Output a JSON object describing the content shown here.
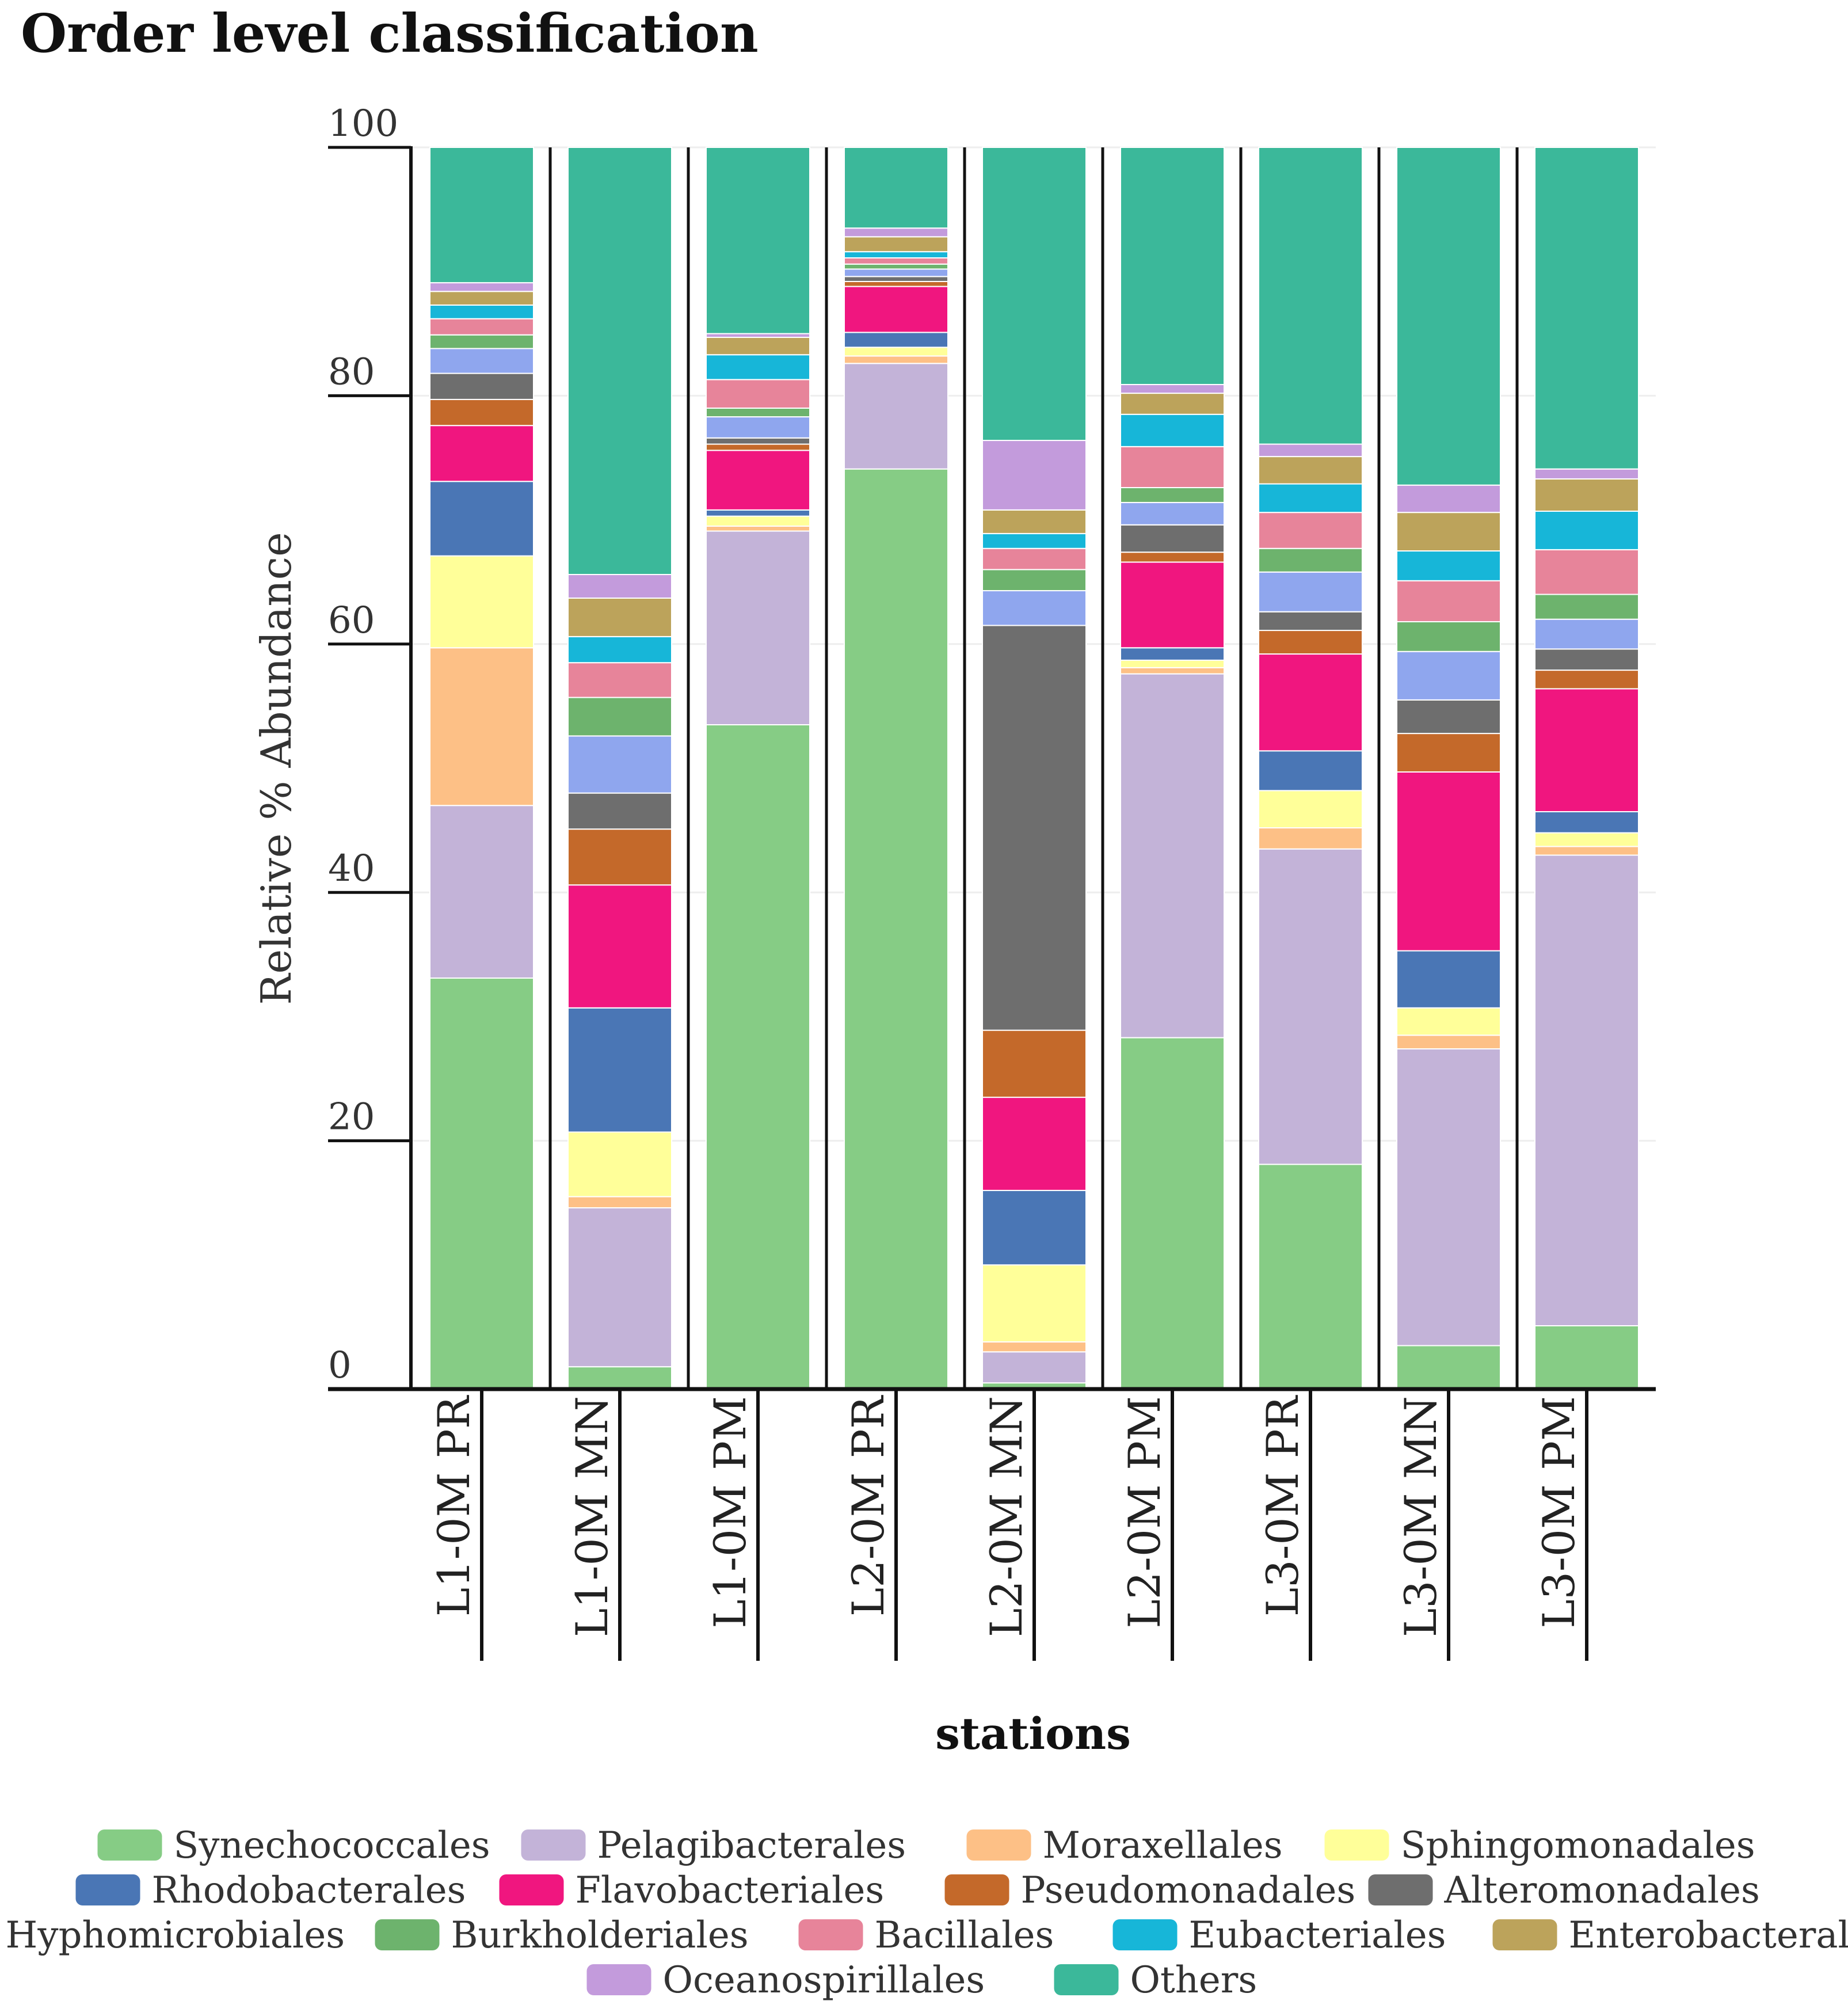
{
  "chart_data": {
    "type": "bar",
    "stacked": true,
    "title": "Order level classification",
    "xlabel": "stations",
    "ylabel": "Relative % Abundance",
    "ylim": [
      0,
      100
    ],
    "yticks": [
      0,
      20,
      40,
      60,
      80,
      100
    ],
    "grid": true,
    "legend_position": "bottom",
    "categories": [
      "L1-0M PR",
      "L1-0M MN",
      "L1-0M PM",
      "L2-0M PR",
      "L2-0M MN",
      "L2-0M PM",
      "L3-0M PR",
      "L3-0M MN",
      "L3-0M PM"
    ],
    "series": [
      {
        "name": "Synechococcales",
        "color": "#86CC85",
        "values": [
          33.1,
          1.8,
          53.5,
          74.1,
          0.5,
          28.3,
          18.1,
          3.5,
          5.1
        ]
      },
      {
        "name": "Pelagibacterales",
        "color": "#C3B3D8",
        "values": [
          13.9,
          12.8,
          15.6,
          8.5,
          2.5,
          29.3,
          25.4,
          23.9,
          37.9
        ]
      },
      {
        "name": "Moraxellales",
        "color": "#FDC086",
        "values": [
          12.7,
          0.9,
          0.4,
          0.6,
          0.8,
          0.5,
          1.7,
          1.1,
          0.7
        ]
      },
      {
        "name": "Sphingomonadales",
        "color": "#FFFF99",
        "values": [
          7.4,
          5.2,
          0.8,
          0.7,
          6.2,
          0.6,
          3.0,
          2.2,
          1.1
        ]
      },
      {
        "name": "Rhodobacterales",
        "color": "#4A76B5",
        "values": [
          6.0,
          10.0,
          0.5,
          1.2,
          6.0,
          1.0,
          3.2,
          4.6,
          1.7
        ]
      },
      {
        "name": "Flavobacteriales",
        "color": "#F0167F",
        "values": [
          4.5,
          9.9,
          4.8,
          3.7,
          7.5,
          6.9,
          7.8,
          14.4,
          9.9
        ]
      },
      {
        "name": "Pseudomonadales",
        "color": "#C4692A",
        "values": [
          2.1,
          4.5,
          0.5,
          0.4,
          5.4,
          0.8,
          1.9,
          3.1,
          1.5
        ]
      },
      {
        "name": "Alteromonadales",
        "color": "#6E6E6E",
        "values": [
          2.1,
          2.9,
          0.5,
          0.4,
          32.6,
          2.2,
          1.5,
          2.7,
          1.7
        ]
      },
      {
        "name": "Hyphomicrobiales",
        "color": "#8FA6EE",
        "values": [
          2.0,
          4.6,
          1.7,
          0.6,
          2.8,
          1.8,
          3.2,
          3.9,
          2.4
        ]
      },
      {
        "name": "Burkholderiales",
        "color": "#6DB36D",
        "values": [
          1.1,
          3.1,
          0.7,
          0.4,
          1.7,
          1.2,
          1.9,
          2.4,
          2.0
        ]
      },
      {
        "name": "Bacillales",
        "color": "#E7849A",
        "values": [
          1.3,
          2.8,
          2.3,
          0.5,
          1.7,
          3.3,
          2.9,
          3.3,
          3.6
        ]
      },
      {
        "name": "Eubacteriales",
        "color": "#17B6D8",
        "values": [
          1.1,
          2.1,
          2.0,
          0.5,
          1.2,
          2.6,
          2.3,
          2.4,
          3.1
        ]
      },
      {
        "name": "Enterobacterales",
        "color": "#BCA35B",
        "values": [
          1.1,
          3.1,
          1.4,
          1.2,
          1.9,
          1.7,
          2.2,
          3.1,
          2.6
        ]
      },
      {
        "name": "Oceanospirillales",
        "color": "#C39BDC",
        "values": [
          0.7,
          1.9,
          0.3,
          0.7,
          5.6,
          0.7,
          1.0,
          2.2,
          0.8
        ]
      },
      {
        "name": "Others",
        "color": "#3BB89A",
        "values": [
          10.9,
          34.4,
          15.0,
          6.5,
          23.6,
          19.1,
          23.9,
          27.2,
          25.9
        ]
      }
    ]
  }
}
